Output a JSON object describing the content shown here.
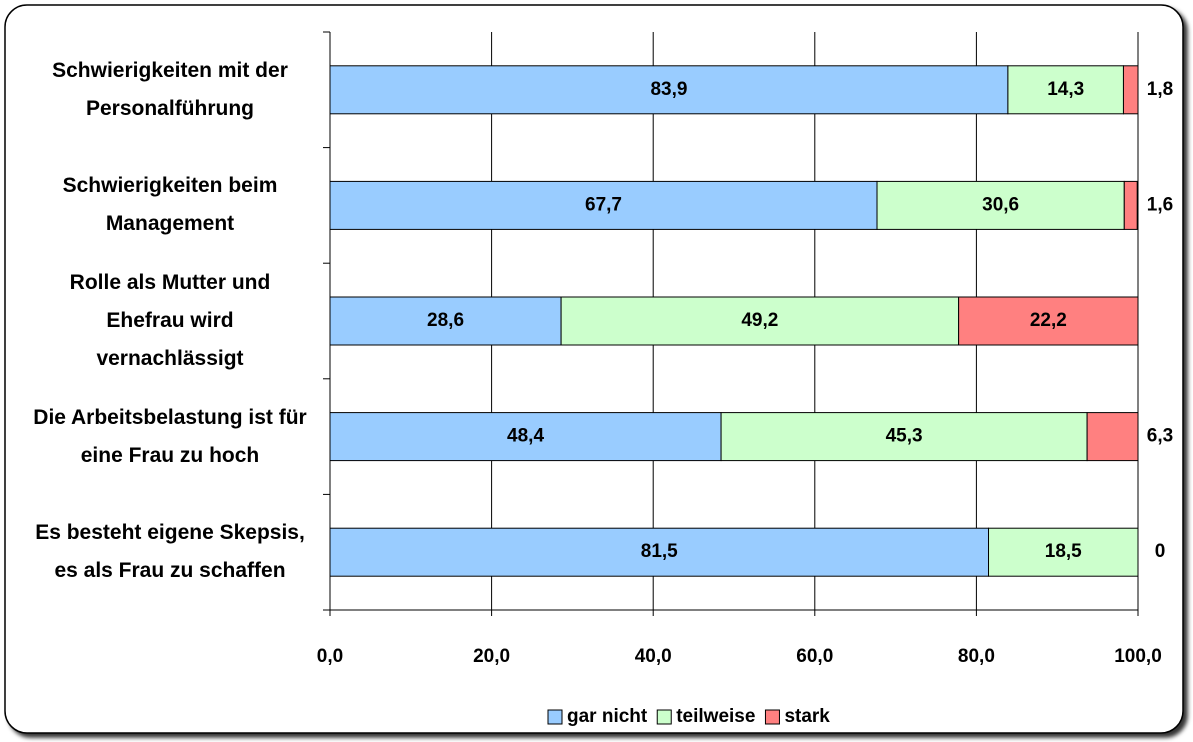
{
  "chart_data": {
    "type": "bar",
    "orientation": "horizontal",
    "stacked": true,
    "categories": [
      "Schwierigkeiten mit der Personalführung",
      "Schwierigkeiten beim Management",
      "Rolle als Mutter und Ehefrau wird vernachlässigt",
      "Die Arbeitsbelastung ist für eine Frau zu hoch",
      "Es besteht eigene Skepsis, es als Frau zu schaffen"
    ],
    "series": [
      {
        "name": "gar nicht",
        "color": "#99ccff",
        "values": [
          83.9,
          67.7,
          28.6,
          48.4,
          81.5
        ],
        "value_labels": [
          "83,9",
          "67,7",
          "28,6",
          "48,4",
          "81,5"
        ]
      },
      {
        "name": "teilweise",
        "color": "#ccffcc",
        "values": [
          14.3,
          30.6,
          49.2,
          45.3,
          18.5
        ],
        "value_labels": [
          "14,3",
          "30,6",
          "49,2",
          "45,3",
          "18,5"
        ]
      },
      {
        "name": "stark",
        "color": "#ff8080",
        "values": [
          1.8,
          1.6,
          22.2,
          6.3,
          0
        ],
        "value_labels": [
          "1,8",
          "1,6",
          "22,2",
          "6,3"
        ]
      }
    ],
    "xlim": [
      0,
      100
    ],
    "xticks": [
      {
        "value": 0,
        "label": "0,0"
      },
      {
        "value": 20,
        "label": "20,0"
      },
      {
        "value": 40,
        "label": "40,0"
      },
      {
        "value": 60,
        "label": "60,0"
      },
      {
        "value": 80,
        "label": "80,0"
      },
      {
        "value": 100,
        "label": "100,0"
      }
    ],
    "grid": true,
    "legend": "bottom"
  }
}
